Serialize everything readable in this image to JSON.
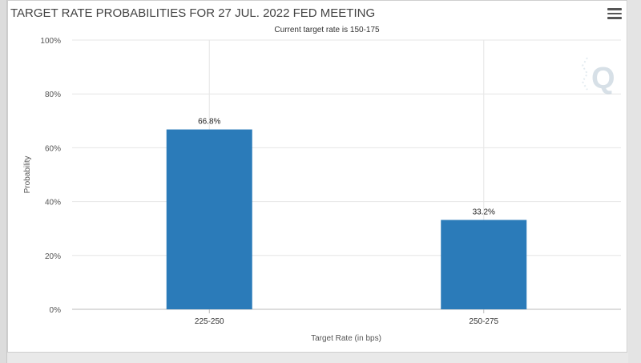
{
  "window": {
    "menu_icon": "hamburger-menu-icon"
  },
  "chart_data": {
    "type": "bar",
    "title": "TARGET RATE PROBABILITIES FOR 27 JUL. 2022 FED MEETING",
    "subtitle": "Current target rate is 150-175",
    "categories": [
      "225-250",
      "250-275"
    ],
    "values": [
      66.8,
      33.2
    ],
    "data_labels": [
      "66.8%",
      "33.2%"
    ],
    "xlabel": "Target Rate (in bps)",
    "ylabel": "Probability",
    "ylim": [
      0,
      100
    ],
    "yticks": [
      0,
      20,
      40,
      60,
      80,
      100
    ],
    "ytick_labels": [
      "0%",
      "20%",
      "40%",
      "60%",
      "80%",
      "100%"
    ],
    "bar_color": "#2b7bb9",
    "grid": true,
    "logo_text": "Q"
  }
}
